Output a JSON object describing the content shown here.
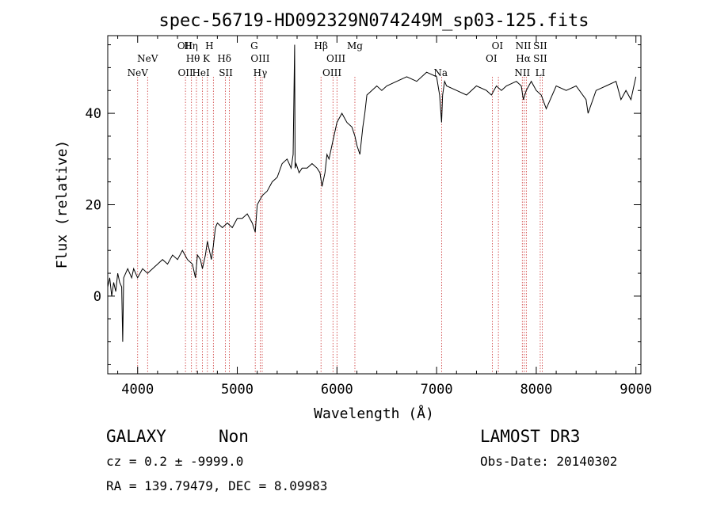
{
  "title": "spec-56719-HD092329N074249M_sp03-125.fits",
  "xlabel": "Wavelength (Å)",
  "ylabel": "Flux (relative)",
  "info": {
    "class": "GALAXY",
    "subclass": "Non",
    "survey": "LAMOST DR3",
    "cz": "cz = 0.2 ± -9999.0",
    "obs_date": "Obs-Date: 20140302",
    "radec": "RA = 139.79479, DEC =    8.09983"
  },
  "chart_data": {
    "type": "line",
    "title": "spec-56719-HD092329N074249M_sp03-125.fits",
    "xlabel": "Wavelength (Å)",
    "ylabel": "Flux (relative)",
    "xlim": [
      3700,
      9050
    ],
    "ylim": [
      -17,
      57
    ],
    "xticks": [
      4000,
      5000,
      6000,
      7000,
      8000,
      9000
    ],
    "yticks": [
      0,
      20,
      40
    ],
    "grid": false,
    "series": [
      {
        "x": [
          3700,
          3720,
          3740,
          3760,
          3780,
          3800,
          3820,
          3840,
          3850,
          3860,
          3880,
          3900,
          3920,
          3940,
          3960,
          3980,
          4000,
          4050,
          4100,
          4150,
          4200,
          4250,
          4300,
          4350,
          4400,
          4450,
          4500,
          4550,
          4580,
          4600,
          4630,
          4650,
          4680,
          4700,
          4720,
          4740,
          4760,
          4780,
          4800,
          4850,
          4900,
          4950,
          5000,
          5050,
          5100,
          5150,
          5180,
          5200,
          5250,
          5300,
          5350,
          5400,
          5450,
          5500,
          5540,
          5560,
          5575,
          5580,
          5590,
          5620,
          5650,
          5700,
          5750,
          5800,
          5830,
          5850,
          5880,
          5900,
          5920,
          5950,
          6000,
          6050,
          6100,
          6150,
          6180,
          6200,
          6230,
          6260,
          6280,
          6300,
          6350,
          6400,
          6450,
          6500,
          6600,
          6700,
          6800,
          6900,
          7000,
          7030,
          7050,
          7060,
          7080,
          7100,
          7200,
          7300,
          7400,
          7500,
          7550,
          7600,
          7650,
          7700,
          7800,
          7850,
          7870,
          7900,
          7950,
          8000,
          8050,
          8100,
          8200,
          8300,
          8400,
          8500,
          8520,
          8600,
          8700,
          8800,
          8850,
          8900,
          8950,
          9000
        ],
        "values": [
          2,
          4,
          0,
          3,
          1,
          5,
          3,
          2,
          -10,
          4,
          5,
          6,
          5,
          4,
          6,
          5,
          4,
          6,
          5,
          6,
          7,
          8,
          7,
          9,
          8,
          10,
          8,
          7,
          4,
          9,
          8,
          6,
          9,
          12,
          10,
          8,
          11,
          15,
          16,
          15,
          16,
          15,
          17,
          17,
          18,
          16,
          14,
          20,
          22,
          23,
          25,
          26,
          29,
          30,
          28,
          31,
          55,
          28,
          29,
          27,
          28,
          28,
          29,
          28,
          27,
          24,
          27,
          31,
          30,
          33,
          38,
          40,
          38,
          37,
          35,
          33,
          31,
          37,
          40,
          44,
          45,
          46,
          45,
          46,
          47,
          48,
          47,
          49,
          48,
          44,
          38,
          44,
          47,
          46,
          45,
          44,
          46,
          45,
          44,
          46,
          45,
          46,
          47,
          46,
          43,
          45,
          47,
          45,
          44,
          41,
          46,
          45,
          46,
          43,
          40,
          45,
          46,
          47,
          43,
          45,
          43,
          48
        ]
      }
    ],
    "line_labels": [
      {
        "name": "NeV",
        "x": 4000,
        "row": 3
      },
      {
        "name": "NeV",
        "x": 4100,
        "row": 2
      },
      {
        "name": "OII",
        "x": 4475,
        "row": 1
      },
      {
        "name": "OII",
        "x": 4480,
        "row": 3
      },
      {
        "name": "Hη",
        "x": 4535,
        "row": 1
      },
      {
        "name": "Hθ",
        "x": 4555,
        "row": 2
      },
      {
        "name": "HeI",
        "x": 4635,
        "row": 3
      },
      {
        "name": "H",
        "x": 4720,
        "row": 1
      },
      {
        "name": "K",
        "x": 4690,
        "row": 2
      },
      {
        "name": "Hδ",
        "x": 4870,
        "row": 2
      },
      {
        "name": "SII",
        "x": 4885,
        "row": 3
      },
      {
        "name": "G",
        "x": 5170,
        "row": 1
      },
      {
        "name": "OIII",
        "x": 5230,
        "row": 2
      },
      {
        "name": "Hγ",
        "x": 5230,
        "row": 3
      },
      {
        "name": "Hβ",
        "x": 5840,
        "row": 1
      },
      {
        "name": "OIII",
        "x": 5990,
        "row": 2
      },
      {
        "name": "OIII",
        "x": 5950,
        "row": 3
      },
      {
        "name": "Mg",
        "x": 6180,
        "row": 1
      },
      {
        "name": "Na",
        "x": 7040,
        "row": 3
      },
      {
        "name": "OI",
        "x": 7610,
        "row": 1
      },
      {
        "name": "OI",
        "x": 7550,
        "row": 2
      },
      {
        "name": "NII",
        "x": 7870,
        "row": 1
      },
      {
        "name": "Hα",
        "x": 7870,
        "row": 2
      },
      {
        "name": "NII",
        "x": 7860,
        "row": 3
      },
      {
        "name": "SII",
        "x": 8040,
        "row": 1
      },
      {
        "name": "SII",
        "x": 8040,
        "row": 2
      },
      {
        "name": "LI",
        "x": 8040,
        "row": 3
      }
    ],
    "line_positions": [
      4000,
      4100,
      4480,
      4540,
      4590,
      4650,
      4700,
      4760,
      4880,
      4920,
      5180,
      5230,
      5250,
      5840,
      5960,
      6000,
      6180,
      7050,
      7560,
      7620,
      7860,
      7880,
      7900,
      8040,
      8060
    ]
  }
}
